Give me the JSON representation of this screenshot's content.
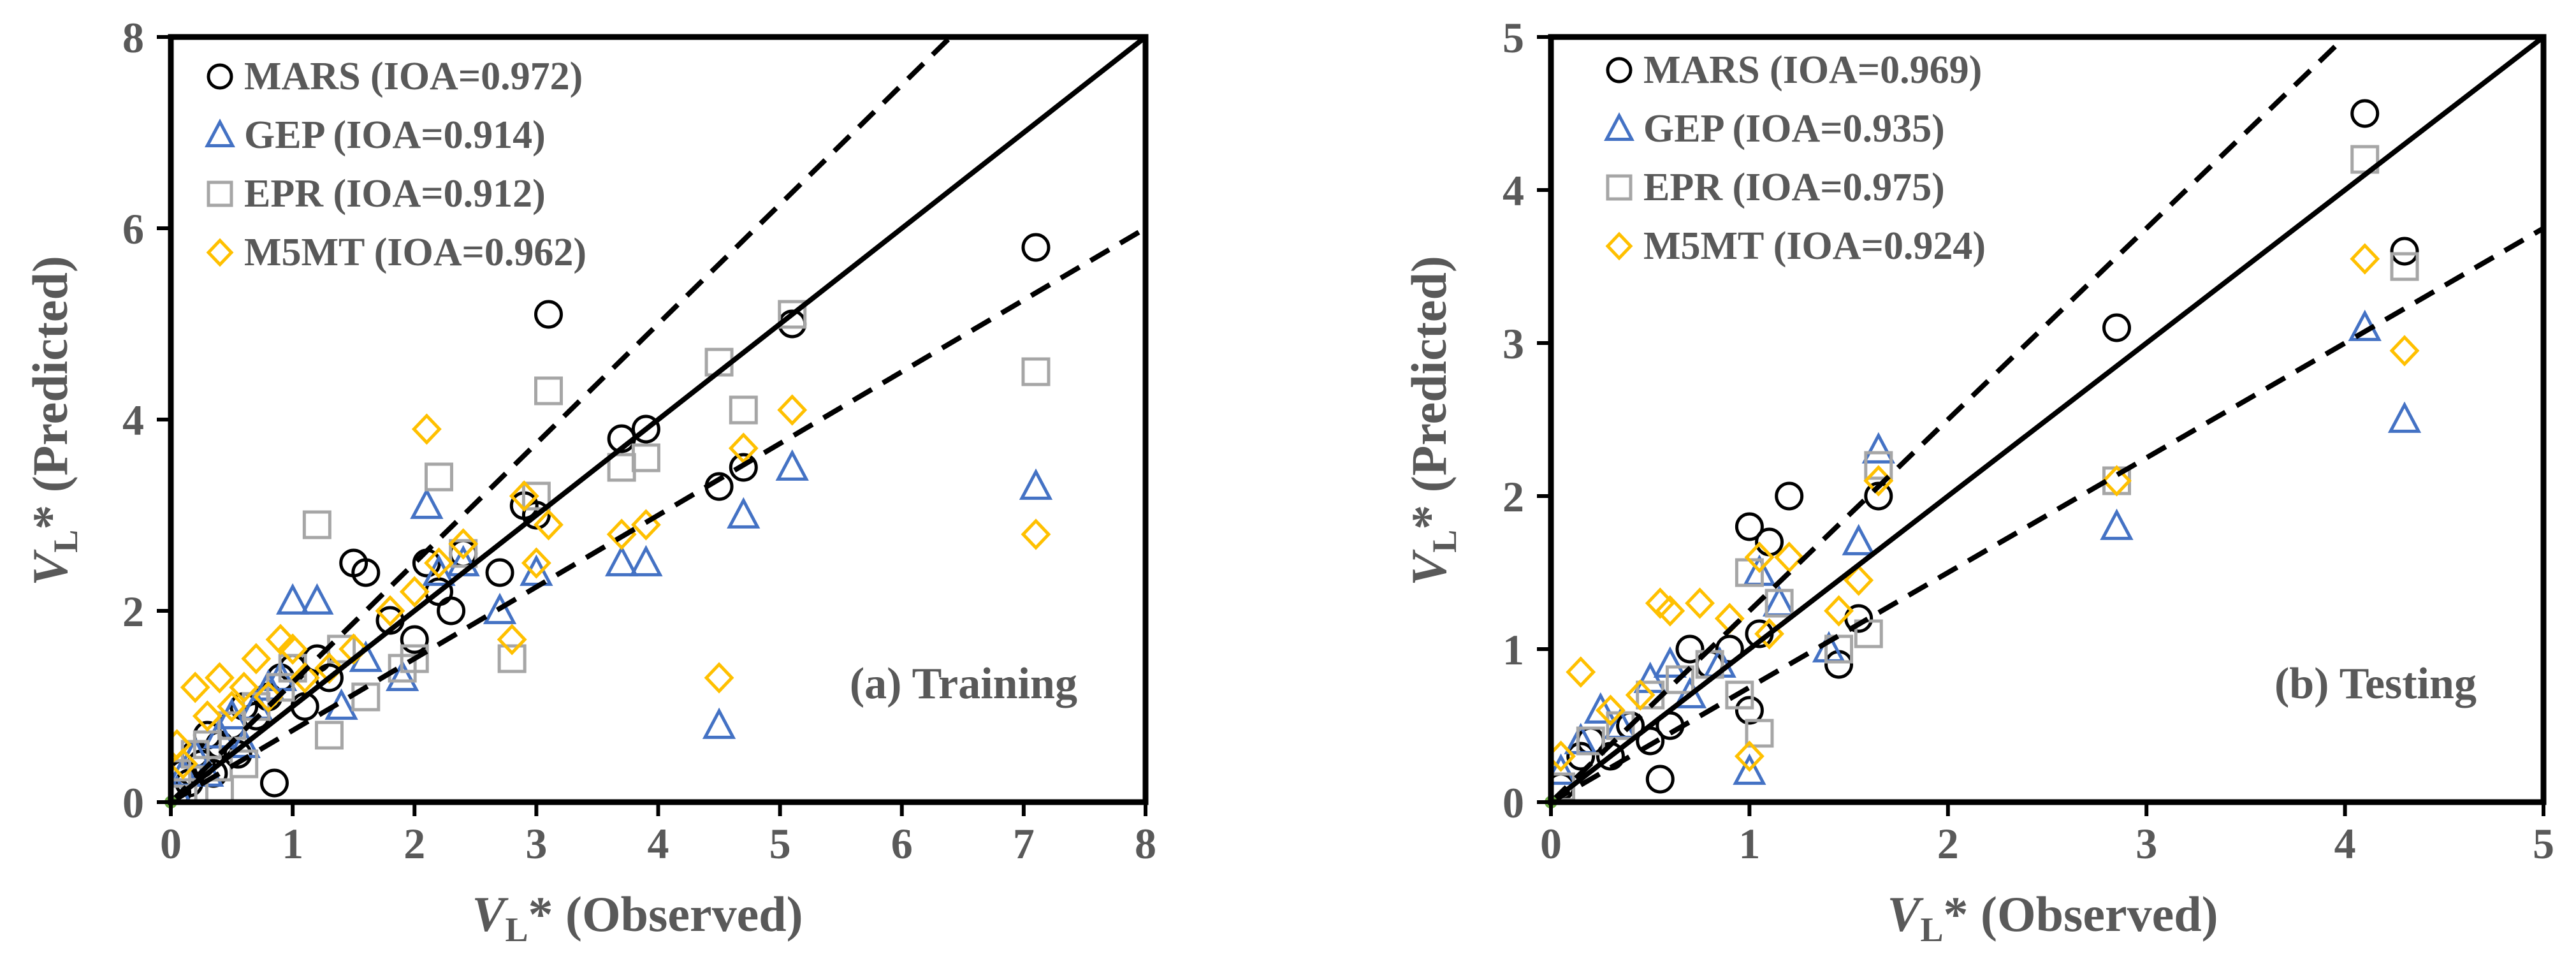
{
  "chart_data": [
    {
      "type": "scatter",
      "panel_label": "(a) Training",
      "xlabel": {
        "var": "V",
        "sub": "L",
        "rest": "* (Observed)"
      },
      "ylabel": {
        "var": "V",
        "sub": "L",
        "rest": "* (Predicted)"
      },
      "xlim": [
        0,
        8
      ],
      "ylim": [
        0,
        8
      ],
      "xticks": [
        "0",
        "1",
        "2",
        "3",
        "4",
        "5",
        "6",
        "7",
        "8"
      ],
      "yticks": [
        "0",
        "2",
        "4",
        "6",
        "8"
      ],
      "reference_lines": [
        {
          "name": "1:1 line",
          "style": "solid",
          "slope": 1.0
        },
        {
          "name": "+25% line",
          "style": "dashed",
          "slope": 1.25
        },
        {
          "name": "-25% line",
          "style": "dashed",
          "slope": 0.75
        }
      ],
      "series": [
        {
          "name": "MARS",
          "legend": "MARS (IOA=0.972)",
          "marker": "circle",
          "color": "#000000",
          "x": [
            0.05,
            0.1,
            0.15,
            0.2,
            0.25,
            0.3,
            0.35,
            0.4,
            0.5,
            0.55,
            0.6,
            0.7,
            0.8,
            0.85,
            0.9,
            1.0,
            1.1,
            1.2,
            1.3,
            1.5,
            1.6,
            1.8,
            2.0,
            2.1,
            2.2,
            2.3,
            2.4,
            2.7,
            2.9,
            3.0,
            3.1,
            3.7,
            3.9,
            4.5,
            4.7,
            5.1,
            7.1
          ],
          "y": [
            0.1,
            0.3,
            0.2,
            0.5,
            0.4,
            0.7,
            0.3,
            0.6,
            0.8,
            0.5,
            1.0,
            0.9,
            1.1,
            0.2,
            1.3,
            1.4,
            1.0,
            1.5,
            1.3,
            2.5,
            2.4,
            1.9,
            1.7,
            2.5,
            2.2,
            2.0,
            2.6,
            2.4,
            3.1,
            3.0,
            5.1,
            3.8,
            3.9,
            3.3,
            3.5,
            5.0,
            5.8
          ]
        },
        {
          "name": "GEP",
          "legend": "GEP (IOA=0.914)",
          "marker": "triangle",
          "color": "#4472C4",
          "x": [
            0.05,
            0.1,
            0.2,
            0.3,
            0.4,
            0.5,
            0.6,
            0.7,
            0.8,
            0.9,
            1.0,
            1.2,
            1.4,
            1.6,
            1.9,
            2.1,
            2.2,
            2.4,
            2.7,
            3.0,
            3.7,
            3.9,
            4.5,
            4.7,
            5.1,
            7.1
          ],
          "y": [
            0.1,
            0.3,
            0.5,
            0.3,
            0.7,
            0.9,
            0.6,
            1.0,
            1.2,
            1.3,
            2.1,
            2.1,
            1.0,
            1.5,
            1.3,
            3.1,
            2.4,
            2.5,
            2.0,
            2.4,
            2.5,
            2.5,
            0.8,
            3.0,
            3.5,
            3.3
          ]
        },
        {
          "name": "EPR",
          "legend": "EPR (IOA=0.912)",
          "marker": "square",
          "color": "#A6A6A6",
          "x": [
            0.05,
            0.1,
            0.2,
            0.3,
            0.4,
            0.5,
            0.6,
            0.7,
            0.9,
            1.0,
            1.2,
            1.3,
            1.4,
            1.6,
            1.9,
            2.0,
            2.2,
            2.4,
            2.8,
            3.0,
            3.1,
            3.7,
            3.9,
            4.5,
            4.7,
            5.1,
            7.1
          ],
          "y": [
            0.3,
            0.1,
            0.5,
            0.6,
            0.1,
            0.8,
            0.4,
            1.0,
            1.2,
            1.4,
            2.9,
            0.7,
            1.6,
            1.1,
            1.4,
            1.5,
            3.4,
            2.6,
            1.5,
            3.2,
            4.3,
            3.5,
            3.6,
            4.6,
            4.1,
            5.1,
            4.5
          ]
        },
        {
          "name": "M5MT",
          "legend": "M5MT (IOA=0.962)",
          "marker": "diamond",
          "color": "#FFC000",
          "x": [
            0.05,
            0.1,
            0.2,
            0.3,
            0.4,
            0.5,
            0.6,
            0.7,
            0.8,
            0.9,
            1.0,
            1.1,
            1.3,
            1.5,
            1.8,
            2.0,
            2.1,
            2.2,
            2.4,
            2.8,
            2.9,
            3.0,
            3.1,
            3.7,
            3.9,
            4.5,
            4.7,
            5.1,
            7.1
          ],
          "y": [
            0.6,
            0.4,
            1.2,
            0.9,
            1.3,
            1.0,
            1.2,
            1.5,
            1.1,
            1.7,
            1.6,
            1.3,
            1.4,
            1.6,
            2.0,
            2.2,
            3.9,
            2.5,
            2.7,
            1.7,
            3.2,
            2.5,
            2.9,
            2.8,
            2.9,
            1.3,
            3.7,
            4.1,
            2.8
          ]
        }
      ]
    },
    {
      "type": "scatter",
      "panel_label": "(b) Testing",
      "xlabel": {
        "var": "V",
        "sub": "L",
        "rest": "* (Observed)"
      },
      "ylabel": {
        "var": "V",
        "sub": "L",
        "rest": "* (Predicted)"
      },
      "xlim": [
        0,
        5
      ],
      "ylim": [
        0,
        5
      ],
      "xticks": [
        "0",
        "1",
        "2",
        "3",
        "4",
        "5"
      ],
      "yticks": [
        "0",
        "1",
        "2",
        "3",
        "4",
        "5"
      ],
      "reference_lines": [
        {
          "name": "1:1 line",
          "style": "solid",
          "slope": 1.0
        },
        {
          "name": "+25% line",
          "style": "dashed",
          "slope": 1.25
        },
        {
          "name": "-25% line",
          "style": "dashed",
          "slope": 0.75
        }
      ],
      "series": [
        {
          "name": "MARS",
          "legend": "MARS (IOA=0.969)",
          "marker": "circle",
          "color": "#000000",
          "x": [
            0.05,
            0.15,
            0.2,
            0.3,
            0.4,
            0.5,
            0.55,
            0.6,
            0.7,
            0.8,
            0.9,
            1.0,
            1.0,
            1.05,
            1.1,
            1.2,
            1.45,
            1.55,
            1.65,
            2.85,
            4.1,
            4.3
          ],
          "y": [
            0.1,
            0.3,
            0.4,
            0.3,
            0.5,
            0.4,
            0.15,
            0.5,
            1.0,
            0.9,
            1.0,
            0.6,
            1.8,
            1.1,
            1.7,
            2.0,
            0.9,
            1.2,
            2.0,
            3.1,
            4.5,
            3.6
          ]
        },
        {
          "name": "GEP",
          "legend": "GEP (IOA=0.935)",
          "marker": "triangle",
          "color": "#4472C4",
          "x": [
            0.05,
            0.15,
            0.25,
            0.35,
            0.5,
            0.6,
            0.7,
            0.85,
            1.0,
            1.05,
            1.15,
            1.4,
            1.55,
            1.65,
            2.85,
            4.1,
            4.3
          ],
          "y": [
            0.2,
            0.4,
            0.6,
            0.5,
            0.8,
            0.9,
            0.7,
            0.9,
            0.2,
            1.5,
            1.3,
            1.0,
            1.7,
            2.3,
            1.8,
            3.1,
            2.5
          ]
        },
        {
          "name": "EPR",
          "legend": "EPR (IOA=0.975)",
          "marker": "square",
          "color": "#A6A6A6",
          "x": [
            0.05,
            0.2,
            0.35,
            0.5,
            0.65,
            0.8,
            0.95,
            1.0,
            1.05,
            1.15,
            1.45,
            1.6,
            1.65,
            2.85,
            4.1,
            4.3
          ],
          "y": [
            0.1,
            0.4,
            0.5,
            0.7,
            0.8,
            0.9,
            0.7,
            1.5,
            0.45,
            1.3,
            1.0,
            1.1,
            2.2,
            2.1,
            4.2,
            3.5
          ]
        },
        {
          "name": "M5MT",
          "legend": "M5MT (IOA=0.924)",
          "marker": "diamond",
          "color": "#FFC000",
          "x": [
            0.05,
            0.15,
            0.3,
            0.45,
            0.55,
            0.6,
            0.75,
            0.9,
            1.0,
            1.05,
            1.1,
            1.2,
            1.45,
            1.55,
            1.65,
            2.85,
            4.1,
            4.3
          ],
          "y": [
            0.3,
            0.85,
            0.6,
            0.7,
            1.3,
            1.25,
            1.3,
            1.2,
            0.3,
            1.6,
            1.1,
            1.6,
            1.25,
            1.45,
            2.1,
            2.1,
            3.55,
            2.95
          ]
        }
      ]
    }
  ]
}
